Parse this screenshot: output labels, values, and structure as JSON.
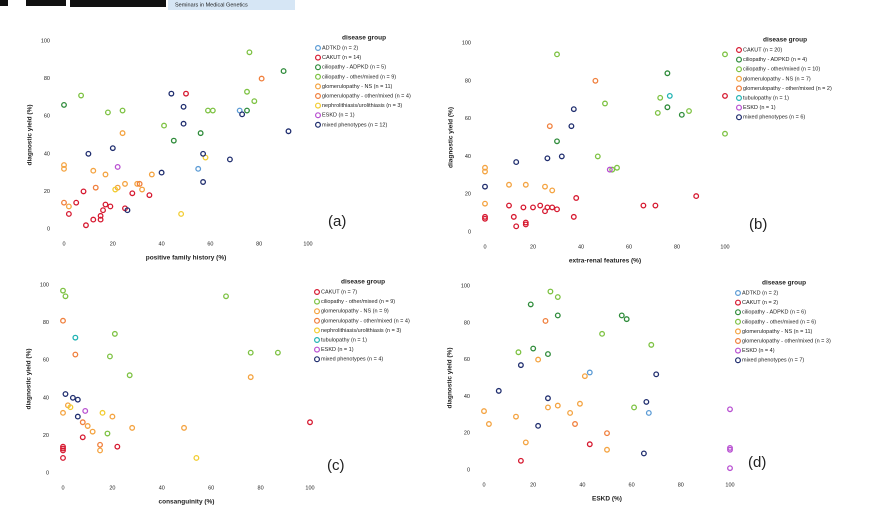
{
  "header": {
    "journal": "Seminars in Medical Genetics"
  },
  "chart_data": [
    {
      "type": "scatter",
      "panel_label": "(a)",
      "x_label": "positive family history (%)",
      "y_label": "diagnostic yield (%)",
      "legend_title": "disease group",
      "xlim": [
        0,
        100
      ],
      "ylim": [
        0,
        100
      ],
      "xticks": [
        0,
        20,
        40,
        60,
        80,
        100
      ],
      "yticks": [
        0,
        20,
        40,
        60,
        80,
        100
      ],
      "series": [
        {
          "name": "ADTKD (n = 2)",
          "color": "#5b9bd5",
          "x": [
            72,
            55
          ],
          "values": [
            63,
            32
          ]
        },
        {
          "name": "CAKUT (n = 14)",
          "color": "#d6182f",
          "x": [
            2,
            5,
            8,
            9,
            12,
            15,
            15,
            16,
            17,
            19,
            25,
            28,
            35,
            50
          ],
          "values": [
            8,
            14,
            20,
            2,
            5,
            7,
            5,
            10,
            13,
            12,
            11,
            19,
            18,
            72
          ]
        },
        {
          "name": "ciliopathy - ADPKD (n = 5)",
          "color": "#2e8b3a",
          "x": [
            0,
            45,
            56,
            75,
            90
          ],
          "values": [
            66,
            47,
            51,
            63,
            84
          ]
        },
        {
          "name": "ciliopathy - other/mixed (n = 9)",
          "color": "#7dc242",
          "x": [
            7,
            18,
            24,
            59,
            61,
            75,
            76,
            78,
            41
          ],
          "values": [
            71,
            62,
            63,
            63,
            63,
            73,
            94,
            68,
            55
          ]
        },
        {
          "name": "glomerulopathy - NS (n = 11)",
          "color": "#f4a340",
          "x": [
            0,
            0,
            2,
            12,
            17,
            22,
            24,
            25,
            30,
            32,
            36
          ],
          "values": [
            32,
            34,
            12,
            31,
            29,
            22,
            51,
            24,
            24,
            21,
            29
          ]
        },
        {
          "name": "glomerulopathy - other/mixed (n = 4)",
          "color": "#f07f3c",
          "x": [
            0,
            13,
            31,
            81
          ],
          "values": [
            14,
            22,
            24,
            80
          ]
        },
        {
          "name": "nephrolithiasis/urolithiasis (n = 3)",
          "color": "#f2cc2f",
          "x": [
            21,
            48,
            58
          ],
          "values": [
            21,
            8,
            38
          ]
        },
        {
          "name": "ESKD (n = 1)",
          "color": "#b84fd1",
          "x": [
            22
          ],
          "values": [
            33
          ]
        },
        {
          "name": "mixed phenotypes (n = 12)",
          "color": "#1f2d6e",
          "x": [
            10,
            20,
            26,
            40,
            44,
            49,
            49,
            57,
            57,
            68,
            73,
            92
          ],
          "values": [
            40,
            43,
            10,
            30,
            72,
            65,
            56,
            25,
            40,
            37,
            61,
            52
          ]
        }
      ]
    },
    {
      "type": "scatter",
      "panel_label": "(b)",
      "x_label": "extra-renal features (%)",
      "y_label": "diagnostic yield (%)",
      "legend_title": "disease group",
      "xlim": [
        0,
        100
      ],
      "ylim": [
        0,
        100
      ],
      "xticks": [
        0,
        20,
        40,
        60,
        80,
        100
      ],
      "yticks": [
        0,
        20,
        40,
        60,
        80,
        100
      ],
      "series": [
        {
          "name": "CAKUT (n = 20)",
          "color": "#d6182f",
          "x": [
            0,
            0,
            10,
            12,
            13,
            16,
            17,
            17,
            20,
            23,
            25,
            26,
            28,
            30,
            37,
            38,
            66,
            71,
            88,
            100
          ],
          "values": [
            8,
            7,
            14,
            8,
            3,
            13,
            4,
            5,
            13,
            14,
            11,
            13,
            13,
            12,
            8,
            18,
            14,
            14,
            19,
            72
          ]
        },
        {
          "name": "ciliopathy - ADPKD (n = 4)",
          "color": "#2e8b3a",
          "x": [
            30,
            76,
            76,
            82
          ],
          "values": [
            48,
            84,
            66,
            62
          ]
        },
        {
          "name": "ciliopathy - other/mixed (n = 10)",
          "color": "#7dc242",
          "x": [
            30,
            47,
            50,
            53,
            55,
            72,
            73,
            85,
            100,
            100
          ],
          "values": [
            94,
            40,
            68,
            33,
            34,
            63,
            71,
            64,
            94,
            52
          ]
        },
        {
          "name": "glomerulopathy - NS (n = 7)",
          "color": "#f4a340",
          "x": [
            0,
            0,
            0,
            10,
            17,
            25,
            28
          ],
          "values": [
            32,
            34,
            15,
            25,
            25,
            24,
            22
          ]
        },
        {
          "name": "glomerulopathy - other/mixed (n = 2)",
          "color": "#f07f3c",
          "x": [
            27,
            46
          ],
          "values": [
            56,
            80
          ]
        },
        {
          "name": "tubulopathy (n = 1)",
          "color": "#20b3b3",
          "x": [
            77
          ],
          "values": [
            72
          ]
        },
        {
          "name": "ESKD (n = 1)",
          "color": "#b84fd1",
          "x": [
            52
          ],
          "values": [
            33
          ]
        },
        {
          "name": "mixed phenotypes (n = 6)",
          "color": "#1f2d6e",
          "x": [
            0,
            13,
            26,
            32,
            36,
            37
          ],
          "values": [
            24,
            37,
            39,
            40,
            56,
            65
          ]
        }
      ]
    },
    {
      "type": "scatter",
      "panel_label": "(c)",
      "x_label": "consanguinity (%)",
      "y_label": "diagnostic yield (%)",
      "legend_title": "disease group",
      "xlim": [
        0,
        100
      ],
      "ylim": [
        0,
        100
      ],
      "xticks": [
        0,
        20,
        40,
        60,
        80,
        100
      ],
      "yticks": [
        0,
        20,
        40,
        60,
        80,
        100
      ],
      "series": [
        {
          "name": "CAKUT (n = 7)",
          "color": "#d6182f",
          "x": [
            0,
            0,
            0,
            0,
            8,
            22,
            100
          ],
          "values": [
            8,
            12,
            13,
            14,
            19,
            14,
            27
          ]
        },
        {
          "name": "ciliopathy - other/mixed (n = 9)",
          "color": "#7dc242",
          "x": [
            0,
            1,
            18,
            19,
            21,
            27,
            66,
            76,
            87
          ],
          "values": [
            97,
            94,
            21,
            62,
            74,
            52,
            94,
            64,
            64
          ]
        },
        {
          "name": "glomerulopathy - NS (n = 9)",
          "color": "#f4a340",
          "x": [
            0,
            2,
            10,
            15,
            20,
            28,
            49,
            76,
            12
          ],
          "values": [
            32,
            36,
            25,
            12,
            30,
            24,
            24,
            51,
            22
          ]
        },
        {
          "name": "glomerulopathy - other/mixed (n = 4)",
          "color": "#f07f3c",
          "x": [
            0,
            5,
            8,
            15
          ],
          "values": [
            81,
            63,
            27,
            15
          ]
        },
        {
          "name": "nephrolithiasis/urolithiasis (n = 3)",
          "color": "#f2cc2f",
          "x": [
            3,
            16,
            54
          ],
          "values": [
            35,
            32,
            8
          ]
        },
        {
          "name": "tubulopathy (n = 1)",
          "color": "#20b3b3",
          "x": [
            5
          ],
          "values": [
            72
          ]
        },
        {
          "name": "ESKD (n = 1)",
          "color": "#b84fd1",
          "x": [
            9
          ],
          "values": [
            33
          ]
        },
        {
          "name": "mixed phenotypes (n = 4)",
          "color": "#1f2d6e",
          "x": [
            1,
            4,
            6,
            6
          ],
          "values": [
            42,
            40,
            39,
            30
          ]
        }
      ]
    },
    {
      "type": "scatter",
      "panel_label": "(d)",
      "x_label": "ESKD (%)",
      "y_label": "diagnostic yield (%)",
      "legend_title": "disease group",
      "xlim": [
        0,
        100
      ],
      "ylim": [
        0,
        100
      ],
      "xticks": [
        0,
        20,
        40,
        60,
        80,
        100
      ],
      "yticks": [
        0,
        20,
        40,
        60,
        80,
        100
      ],
      "series": [
        {
          "name": "ADTKD (n = 2)",
          "color": "#5b9bd5",
          "x": [
            43,
            67
          ],
          "values": [
            53,
            31
          ]
        },
        {
          "name": "CAKUT (n = 2)",
          "color": "#d6182f",
          "x": [
            15,
            43
          ],
          "values": [
            5,
            14
          ]
        },
        {
          "name": "ciliopathy - ADPKD (n = 6)",
          "color": "#2e8b3a",
          "x": [
            19,
            20,
            26,
            30,
            56,
            58
          ],
          "values": [
            90,
            66,
            63,
            84,
            84,
            82
          ]
        },
        {
          "name": "ciliopathy - other/mixed (n = 6)",
          "color": "#7dc242",
          "x": [
            14,
            27,
            30,
            48,
            61,
            68
          ],
          "values": [
            64,
            97,
            94,
            74,
            34,
            68
          ]
        },
        {
          "name": "glomerulopathy - NS (n = 11)",
          "color": "#f4a340",
          "x": [
            0,
            2,
            13,
            17,
            22,
            26,
            30,
            35,
            39,
            41,
            50
          ],
          "values": [
            32,
            25,
            29,
            15,
            60,
            34,
            35,
            31,
            36,
            51,
            11
          ]
        },
        {
          "name": "glomerulopathy - other/mixed (n = 3)",
          "color": "#f07f3c",
          "x": [
            25,
            37,
            50
          ],
          "values": [
            81,
            25,
            20
          ]
        },
        {
          "name": "ESKD (n = 4)",
          "color": "#b84fd1",
          "x": [
            100,
            100,
            100,
            100
          ],
          "values": [
            33,
            12,
            11,
            1
          ]
        },
        {
          "name": "mixed phenotypes (n = 7)",
          "color": "#1f2d6e",
          "x": [
            6,
            15,
            22,
            26,
            65,
            66,
            70
          ],
          "values": [
            43,
            57,
            24,
            39,
            9,
            37,
            52
          ]
        }
      ]
    }
  ]
}
